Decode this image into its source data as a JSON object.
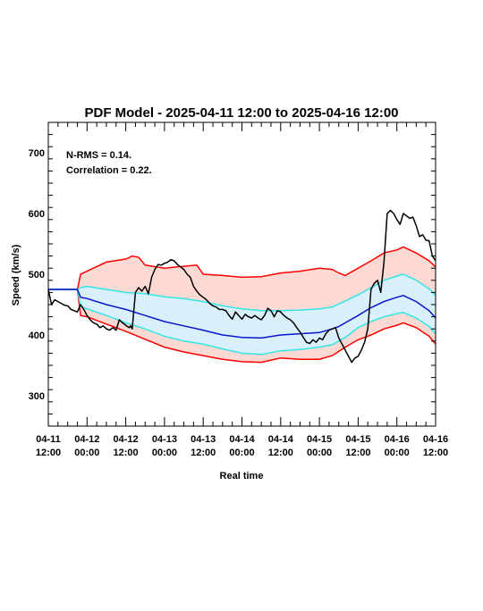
{
  "chart_data": {
    "type": "line",
    "title": "PDF Model - 2025-04-11 12:00 to 2025-04-16 12:00",
    "xlabel": "Real time",
    "ylabel": "Speed (km/s)",
    "xlim": [
      0,
      120
    ],
    "ylim": [
      250,
      750
    ],
    "y_ticks": [
      300,
      400,
      500,
      600,
      700
    ],
    "x_ticks": [
      {
        "x": 0,
        "line1": "04-11",
        "line2": "12:00"
      },
      {
        "x": 12,
        "line1": "04-12",
        "line2": "00:00"
      },
      {
        "x": 24,
        "line1": "04-12",
        "line2": "12:00"
      },
      {
        "x": 36,
        "line1": "04-13",
        "line2": "00:00"
      },
      {
        "x": 48,
        "line1": "04-13",
        "line2": "12:00"
      },
      {
        "x": 60,
        "line1": "04-14",
        "line2": "00:00"
      },
      {
        "x": 72,
        "line1": "04-14",
        "line2": "12:00"
      },
      {
        "x": 84,
        "line1": "04-15",
        "line2": "00:00"
      },
      {
        "x": 96,
        "line1": "04-15",
        "line2": "12:00"
      },
      {
        "x": 108,
        "line1": "04-16",
        "line2": "00:00"
      },
      {
        "x": 120,
        "line1": "04-16",
        "line2": "12:00"
      }
    ],
    "annotations": [
      "N-RMS = 0.14.",
      "Correlation = 0.22."
    ],
    "x_unit": "hours from 04-11 12:00",
    "colors": {
      "outer_band_fill": "#fcd9d3",
      "inner_band_fill": "#d9f0fb",
      "outer_line": "#ff0000",
      "inner_line": "#33e6e6",
      "median": "#0a14cc",
      "observed": "#000000"
    },
    "series": [
      {
        "role": "upper_outer",
        "points": [
          [
            0,
            475
          ],
          [
            9,
            475
          ],
          [
            10,
            500
          ],
          [
            12,
            505
          ],
          [
            14,
            510
          ],
          [
            18,
            520
          ],
          [
            24,
            525
          ],
          [
            26,
            530
          ],
          [
            28,
            528
          ],
          [
            30,
            515
          ],
          [
            36,
            510
          ],
          [
            40,
            512
          ],
          [
            46,
            515
          ],
          [
            48,
            500
          ],
          [
            54,
            498
          ],
          [
            60,
            495
          ],
          [
            66,
            496
          ],
          [
            72,
            502
          ],
          [
            78,
            505
          ],
          [
            84,
            510
          ],
          [
            88,
            508
          ],
          [
            90,
            502
          ],
          [
            92,
            498
          ],
          [
            96,
            510
          ],
          [
            100,
            522
          ],
          [
            104,
            535
          ],
          [
            108,
            540
          ],
          [
            110,
            545
          ],
          [
            114,
            535
          ],
          [
            118,
            522
          ],
          [
            120,
            512
          ]
        ]
      },
      {
        "role": "upper_inner",
        "points": [
          [
            0,
            475
          ],
          [
            9,
            475
          ],
          [
            10,
            478
          ],
          [
            12,
            480
          ],
          [
            18,
            475
          ],
          [
            24,
            470
          ],
          [
            30,
            468
          ],
          [
            36,
            463
          ],
          [
            42,
            460
          ],
          [
            48,
            455
          ],
          [
            54,
            448
          ],
          [
            60,
            443
          ],
          [
            66,
            440
          ],
          [
            72,
            440
          ],
          [
            78,
            441
          ],
          [
            84,
            443
          ],
          [
            88,
            446
          ],
          [
            92,
            456
          ],
          [
            96,
            466
          ],
          [
            100,
            478
          ],
          [
            104,
            490
          ],
          [
            108,
            497
          ],
          [
            110,
            500
          ],
          [
            114,
            490
          ],
          [
            118,
            476
          ],
          [
            120,
            465
          ]
        ]
      },
      {
        "role": "median",
        "points": [
          [
            0,
            475
          ],
          [
            9,
            475
          ],
          [
            10,
            462
          ],
          [
            12,
            460
          ],
          [
            18,
            450
          ],
          [
            24,
            442
          ],
          [
            30,
            432
          ],
          [
            36,
            422
          ],
          [
            42,
            415
          ],
          [
            48,
            408
          ],
          [
            54,
            400
          ],
          [
            60,
            396
          ],
          [
            66,
            395
          ],
          [
            72,
            400
          ],
          [
            78,
            402
          ],
          [
            84,
            404
          ],
          [
            88,
            410
          ],
          [
            90,
            414
          ],
          [
            92,
            420
          ],
          [
            96,
            432
          ],
          [
            100,
            445
          ],
          [
            104,
            455
          ],
          [
            108,
            462
          ],
          [
            110,
            465
          ],
          [
            114,
            455
          ],
          [
            118,
            440
          ],
          [
            120,
            428
          ]
        ]
      },
      {
        "role": "lower_inner",
        "points": [
          [
            0,
            475
          ],
          [
            9,
            475
          ],
          [
            10,
            447
          ],
          [
            12,
            443
          ],
          [
            18,
            432
          ],
          [
            24,
            420
          ],
          [
            30,
            410
          ],
          [
            36,
            398
          ],
          [
            42,
            390
          ],
          [
            48,
            385
          ],
          [
            54,
            377
          ],
          [
            60,
            370
          ],
          [
            66,
            368
          ],
          [
            72,
            374
          ],
          [
            78,
            376
          ],
          [
            84,
            380
          ],
          [
            88,
            384
          ],
          [
            92,
            396
          ],
          [
            96,
            412
          ],
          [
            100,
            422
          ],
          [
            104,
            430
          ],
          [
            108,
            435
          ],
          [
            110,
            437
          ],
          [
            114,
            428
          ],
          [
            118,
            414
          ],
          [
            120,
            402
          ]
        ]
      },
      {
        "role": "lower_outer",
        "points": [
          [
            0,
            475
          ],
          [
            9,
            475
          ],
          [
            10,
            432
          ],
          [
            12,
            430
          ],
          [
            18,
            418
          ],
          [
            24,
            406
          ],
          [
            30,
            393
          ],
          [
            36,
            380
          ],
          [
            42,
            372
          ],
          [
            48,
            366
          ],
          [
            54,
            360
          ],
          [
            60,
            356
          ],
          [
            66,
            355
          ],
          [
            72,
            362
          ],
          [
            78,
            360
          ],
          [
            84,
            360
          ],
          [
            88,
            366
          ],
          [
            92,
            380
          ],
          [
            96,
            392
          ],
          [
            100,
            400
          ],
          [
            104,
            410
          ],
          [
            108,
            416
          ],
          [
            110,
            420
          ],
          [
            114,
            412
          ],
          [
            118,
            398
          ],
          [
            120,
            385
          ]
        ]
      },
      {
        "role": "observed",
        "points": [
          [
            0,
            475
          ],
          [
            1,
            450
          ],
          [
            2,
            458
          ],
          [
            3,
            455
          ],
          [
            4,
            452
          ],
          [
            5,
            449
          ],
          [
            6,
            448
          ],
          [
            7,
            442
          ],
          [
            8,
            440
          ],
          [
            9,
            438
          ],
          [
            10,
            450
          ],
          [
            11,
            442
          ],
          [
            12,
            432
          ],
          [
            13,
            425
          ],
          [
            14,
            420
          ],
          [
            15,
            418
          ],
          [
            16,
            412
          ],
          [
            17,
            415
          ],
          [
            18,
            410
          ],
          [
            19,
            408
          ],
          [
            20,
            412
          ],
          [
            21,
            408
          ],
          [
            22,
            425
          ],
          [
            23,
            420
          ],
          [
            24,
            416
          ],
          [
            25,
            412
          ],
          [
            25.5,
            415
          ],
          [
            26,
            410
          ],
          [
            27,
            470
          ],
          [
            28,
            478
          ],
          [
            29,
            472
          ],
          [
            30,
            480
          ],
          [
            31,
            468
          ],
          [
            32,
            495
          ],
          [
            33,
            508
          ],
          [
            34,
            516
          ],
          [
            35,
            515
          ],
          [
            36,
            518
          ],
          [
            37,
            520
          ],
          [
            38,
            524
          ],
          [
            39,
            522
          ],
          [
            40,
            516
          ],
          [
            41,
            512
          ],
          [
            42,
            508
          ],
          [
            43,
            500
          ],
          [
            44,
            495
          ],
          [
            45,
            480
          ],
          [
            46,
            472
          ],
          [
            47,
            466
          ],
          [
            48,
            462
          ],
          [
            49,
            458
          ],
          [
            50,
            452
          ],
          [
            51,
            448
          ],
          [
            52,
            446
          ],
          [
            53,
            442
          ],
          [
            54,
            442
          ],
          [
            55,
            440
          ],
          [
            56,
            432
          ],
          [
            57,
            426
          ],
          [
            58,
            438
          ],
          [
            59,
            432
          ],
          [
            60,
            426
          ],
          [
            61,
            434
          ],
          [
            62,
            430
          ],
          [
            63,
            428
          ],
          [
            64,
            432
          ],
          [
            65,
            428
          ],
          [
            66,
            425
          ],
          [
            67,
            432
          ],
          [
            68,
            444
          ],
          [
            69,
            440
          ],
          [
            70,
            430
          ],
          [
            71,
            440
          ],
          [
            72,
            438
          ],
          [
            73,
            432
          ],
          [
            74,
            428
          ],
          [
            75,
            425
          ],
          [
            76,
            420
          ],
          [
            77,
            412
          ],
          [
            78,
            405
          ],
          [
            79,
            396
          ],
          [
            80,
            388
          ],
          [
            81,
            386
          ],
          [
            82,
            392
          ],
          [
            83,
            388
          ],
          [
            84,
            395
          ],
          [
            85,
            392
          ],
          [
            86,
            402
          ],
          [
            87,
            408
          ],
          [
            88,
            410
          ],
          [
            89,
            412
          ],
          [
            90,
            395
          ],
          [
            91,
            385
          ],
          [
            92,
            375
          ],
          [
            93,
            365
          ],
          [
            94,
            355
          ],
          [
            95,
            362
          ],
          [
            96,
            365
          ],
          [
            97,
            375
          ],
          [
            98,
            388
          ],
          [
            99,
            410
          ],
          [
            100,
            475
          ],
          [
            101,
            485
          ],
          [
            102,
            490
          ],
          [
            103,
            470
          ],
          [
            104,
            520
          ],
          [
            105,
            600
          ],
          [
            106,
            605
          ],
          [
            107,
            600
          ],
          [
            108,
            590
          ],
          [
            109,
            582
          ],
          [
            110,
            600
          ],
          [
            111,
            596
          ],
          [
            112,
            592
          ],
          [
            113,
            594
          ],
          [
            114,
            580
          ],
          [
            115,
            562
          ],
          [
            116,
            565
          ],
          [
            117,
            556
          ],
          [
            118,
            555
          ],
          [
            119,
            530
          ],
          [
            120,
            522
          ]
        ]
      }
    ]
  }
}
